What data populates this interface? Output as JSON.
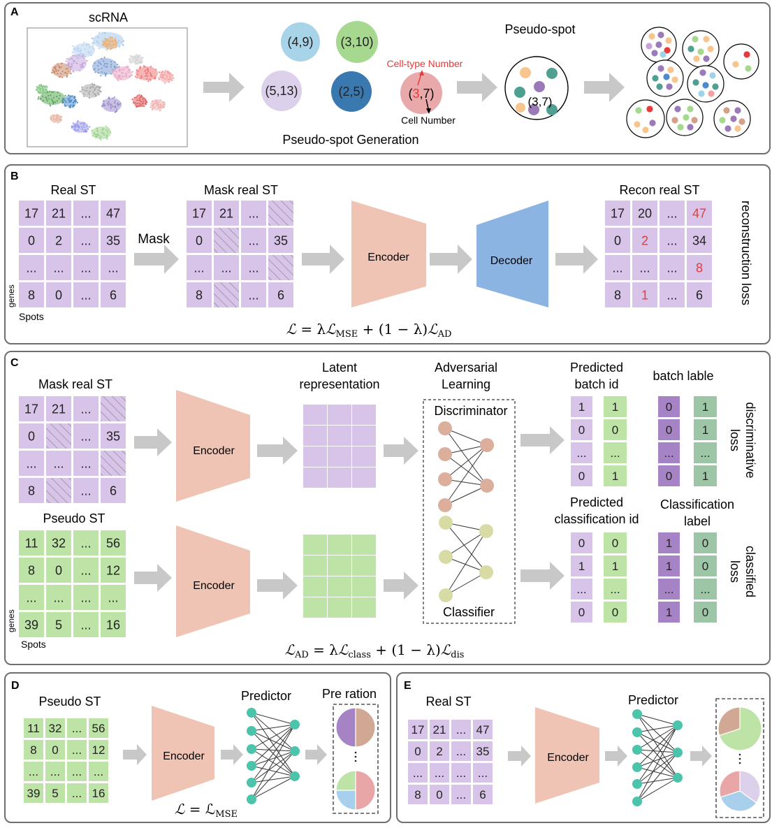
{
  "panels": {
    "a": {
      "letter": "A",
      "scrna_label": "scRNA",
      "circles": [
        {
          "label": "(4,9)",
          "color": "#a8d4ea"
        },
        {
          "label": "(3,10)",
          "color": "#a6d98f"
        },
        {
          "label": "(5,13)",
          "color": "#dcd0ea"
        },
        {
          "label": "(2,5)",
          "color": "#3a78b0"
        }
      ],
      "example_spot": {
        "prefix": "(",
        "num1": "3",
        "suffix": ",7)",
        "color": "#e9a9aa"
      },
      "celltype_label": "Cell-type Number",
      "cellnumber_label": "Cell Number",
      "pseudo_spot_title": "Pseudo-spot",
      "pseudo_spot_inner": "(3,7)",
      "generation_label": "Pseudo-spot Generation"
    },
    "b": {
      "letter": "B",
      "real_st_title": "Real ST",
      "mask_title": "Mask real ST",
      "recon_title": "Recon real ST",
      "mask_label": "Mask",
      "encoder_label": "Encoder",
      "decoder_label": "Decoder",
      "loss_label": "reconstruction loss",
      "genes_label": "genes",
      "spots_label": "Spots",
      "real_matrix": [
        [
          "17",
          "21",
          "...",
          "47"
        ],
        [
          "0",
          "2",
          "...",
          "35"
        ],
        [
          "...",
          "...",
          "...",
          "..."
        ],
        [
          "8",
          "0",
          "...",
          "6"
        ]
      ],
      "mask_matrix": [
        [
          "17",
          "21",
          "...",
          ""
        ],
        [
          "0",
          "",
          "...",
          "35"
        ],
        [
          "...",
          "...",
          "...",
          ""
        ],
        [
          "8",
          "",
          "...",
          "6"
        ]
      ],
      "recon_matrix": [
        [
          "17",
          "20",
          "...",
          "47"
        ],
        [
          "0",
          "2",
          "...",
          "34"
        ],
        [
          "...",
          "...",
          "...",
          "8"
        ],
        [
          "8",
          "1",
          "...",
          "6"
        ]
      ],
      "formula": {
        "L": "ℒ",
        "eq": " = λ",
        "mse": "MSE",
        "mid": " + (1 − λ)",
        "ad": "AD"
      }
    },
    "c": {
      "letter": "C",
      "mask_title": "Mask real ST",
      "pseudo_title": "Pseudo ST",
      "latent_title_1": "Latent",
      "latent_title_2": "representation",
      "adv_title_1": "Adversarial",
      "adv_title_2": "Learning",
      "discriminator_label": "Discriminator",
      "classifier_label": "Classifier",
      "pred_batch_1": "Predicted",
      "pred_batch_2": "batch id",
      "batch_label": "batch lable",
      "pred_class_1": "Predicted",
      "pred_class_2": "classification id",
      "class_label_1": "Classification",
      "class_label_2": "label",
      "dis_loss_1": "discriminative",
      "dis_loss_2": "loss",
      "cls_loss_1": "classified",
      "cls_loss_2": "loss",
      "encoder_label": "Encoder",
      "genes_label": "genes",
      "spots_label": "Spots",
      "mask_matrix": [
        [
          "17",
          "21",
          "...",
          ""
        ],
        [
          "0",
          "",
          "...",
          "35"
        ],
        [
          "...",
          "...",
          "...",
          ""
        ],
        [
          "8",
          "",
          "...",
          "6"
        ]
      ],
      "pseudo_matrix": [
        [
          "11",
          "32",
          "...",
          "56"
        ],
        [
          "8",
          "0",
          "...",
          "12"
        ],
        [
          "...",
          "...",
          "...",
          "..."
        ],
        [
          "39",
          "5",
          "...",
          "16"
        ]
      ],
      "pred_batch_cols": [
        [
          "1",
          "0",
          "...",
          "0"
        ],
        [
          "1",
          "0",
          "...",
          "1"
        ]
      ],
      "batch_label_cols": [
        [
          "0",
          "0",
          "...",
          "0"
        ],
        [
          "1",
          "1",
          "...",
          "1"
        ]
      ],
      "pred_class_cols": [
        [
          "0",
          "1",
          "...",
          "0"
        ],
        [
          "0",
          "1",
          "...",
          "0"
        ]
      ],
      "class_label_cols": [
        [
          "1",
          "1",
          "...",
          "1"
        ],
        [
          "0",
          "0",
          "...",
          "0"
        ]
      ],
      "formula": {
        "L": "ℒ",
        "ad": "AD",
        "eq": " = λ",
        "class": "class",
        "mid": " + (1 − λ)",
        "dis": "dis"
      }
    },
    "d": {
      "letter": "D",
      "title": "Pseudo ST",
      "encoder_label": "Encoder",
      "predictor_label": "Predictor",
      "pre_ration_label": "Pre ration",
      "matrix": [
        [
          "11",
          "32",
          "...",
          "56"
        ],
        [
          "8",
          "0",
          "...",
          "12"
        ],
        [
          "...",
          "...",
          "...",
          "..."
        ],
        [
          "39",
          "5",
          "...",
          "16"
        ]
      ],
      "formula": {
        "L": "ℒ",
        "eq": " = ℒ",
        "mse": "MSE"
      }
    },
    "e": {
      "letter": "E",
      "title": "Real ST",
      "encoder_label": "Encoder",
      "predictor_label": "Predictor",
      "matrix": [
        [
          "17",
          "21",
          "...",
          "47"
        ],
        [
          "0",
          "2",
          "...",
          "35"
        ],
        [
          "...",
          "...",
          "...",
          "..."
        ],
        [
          "8",
          "0",
          "...",
          "6"
        ]
      ]
    }
  },
  "colors": {
    "purple_cell": "#d8c4e8",
    "green_cell": "#bde3a6",
    "encoder": "#f0c4b4",
    "decoder": "#8cb4e2",
    "arrow": "#c8c8c8",
    "node_brown": "#dcae9c",
    "node_olive": "#d8dca4",
    "node_teal": "#4cc4ac",
    "dark_purple": "#a583c4",
    "dark_green": "#9cc6a6",
    "highlight_red": "#e83a3a"
  }
}
